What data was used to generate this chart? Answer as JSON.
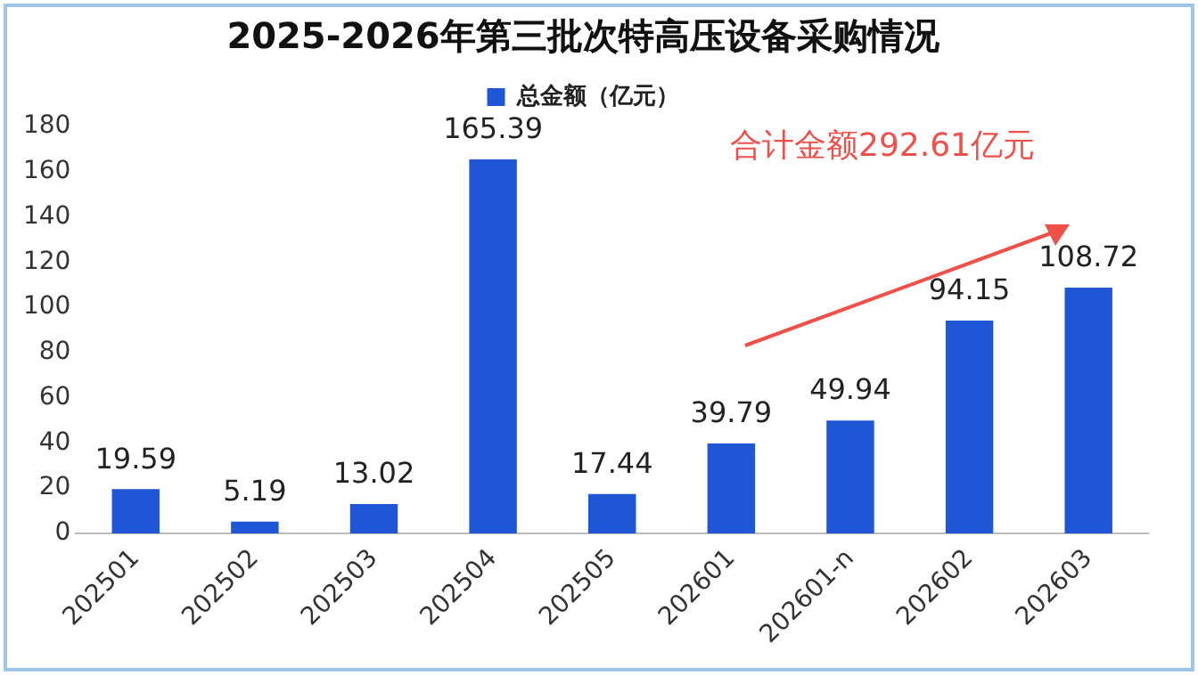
{
  "chart_data": {
    "type": "bar",
    "title": "2025-2026年第三批次特高压设备采购情况",
    "categories": [
      "202501",
      "202502",
      "202503",
      "202504",
      "202505",
      "202601",
      "202601-n",
      "202602",
      "202603"
    ],
    "series": [
      {
        "name": "总金额（亿元）",
        "color": "#1f56d6",
        "values": [
          19.59,
          5.19,
          13.02,
          165.39,
          17.44,
          39.79,
          49.94,
          94.15,
          108.72
        ]
      }
    ],
    "ylim": [
      0,
      180
    ],
    "yticks": [
      0,
      20,
      40,
      60,
      80,
      100,
      120,
      140,
      160,
      180
    ],
    "grid": false,
    "legend": "top",
    "data_labels": true,
    "annotations": [
      "合计金额292.61亿元"
    ]
  }
}
